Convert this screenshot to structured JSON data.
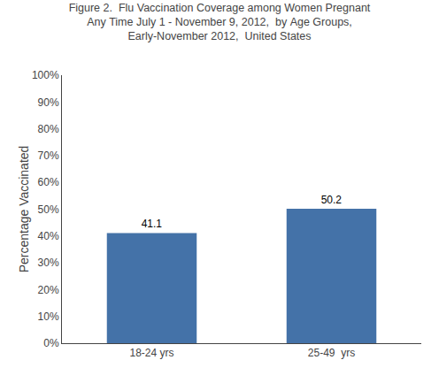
{
  "chart_data": {
    "type": "bar",
    "title": "Figure 2.  Flu Vaccination Coverage among Women Pregnant\nAny Time July 1 - November 9, 2012,  by Age Groups,\nEarly-November 2012,  United States",
    "ylabel": "Percentage Vaccinated",
    "categories": [
      "18-24 yrs",
      "25-49  yrs"
    ],
    "values": [
      41.1,
      50.2
    ],
    "color": "#4472a8",
    "ylim": [
      0,
      100
    ],
    "yticks": [
      {
        "value": 0,
        "label": "0%"
      },
      {
        "value": 10,
        "label": "10%"
      },
      {
        "value": 20,
        "label": "20%"
      },
      {
        "value": 30,
        "label": "30%"
      },
      {
        "value": 40,
        "label": "40%"
      },
      {
        "value": 50,
        "label": "50%"
      },
      {
        "value": 60,
        "label": "60%"
      },
      {
        "value": 70,
        "label": "70%"
      },
      {
        "value": 80,
        "label": "80%"
      },
      {
        "value": 90,
        "label": "90%"
      },
      {
        "value": 100,
        "label": "100%"
      }
    ],
    "data_labels": true,
    "grid": false
  }
}
